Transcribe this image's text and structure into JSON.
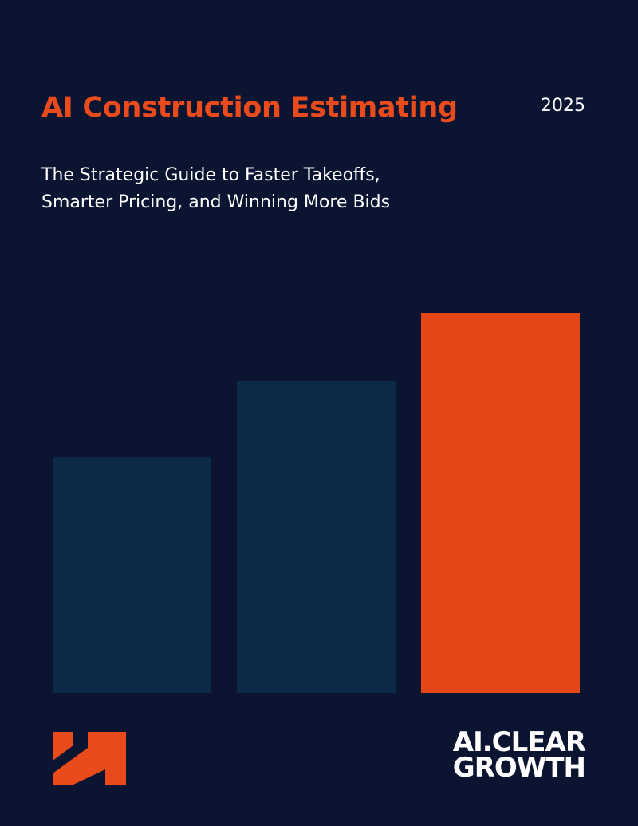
{
  "cover": {
    "title": "AI Construction Estimating",
    "year": "2025",
    "subtitle_lines": [
      "The Strategic Guide to Faster Takeoffs,",
      "Smarter Pricing, and Winning More Bids"
    ]
  },
  "bars": [
    {
      "name": "bar-left",
      "level": 0.62,
      "color": "#0c2a48"
    },
    {
      "name": "bar-middle",
      "level": 0.82,
      "color": "#0c2a48"
    },
    {
      "name": "bar-right",
      "level": 1.0,
      "color": "#e54617"
    }
  ],
  "brand": {
    "name_lines": [
      "AI.CLEAR",
      "GROWTH"
    ],
    "accent_color": "#e94b1c",
    "logo_icon": "stepped-h-logo-icon"
  }
}
